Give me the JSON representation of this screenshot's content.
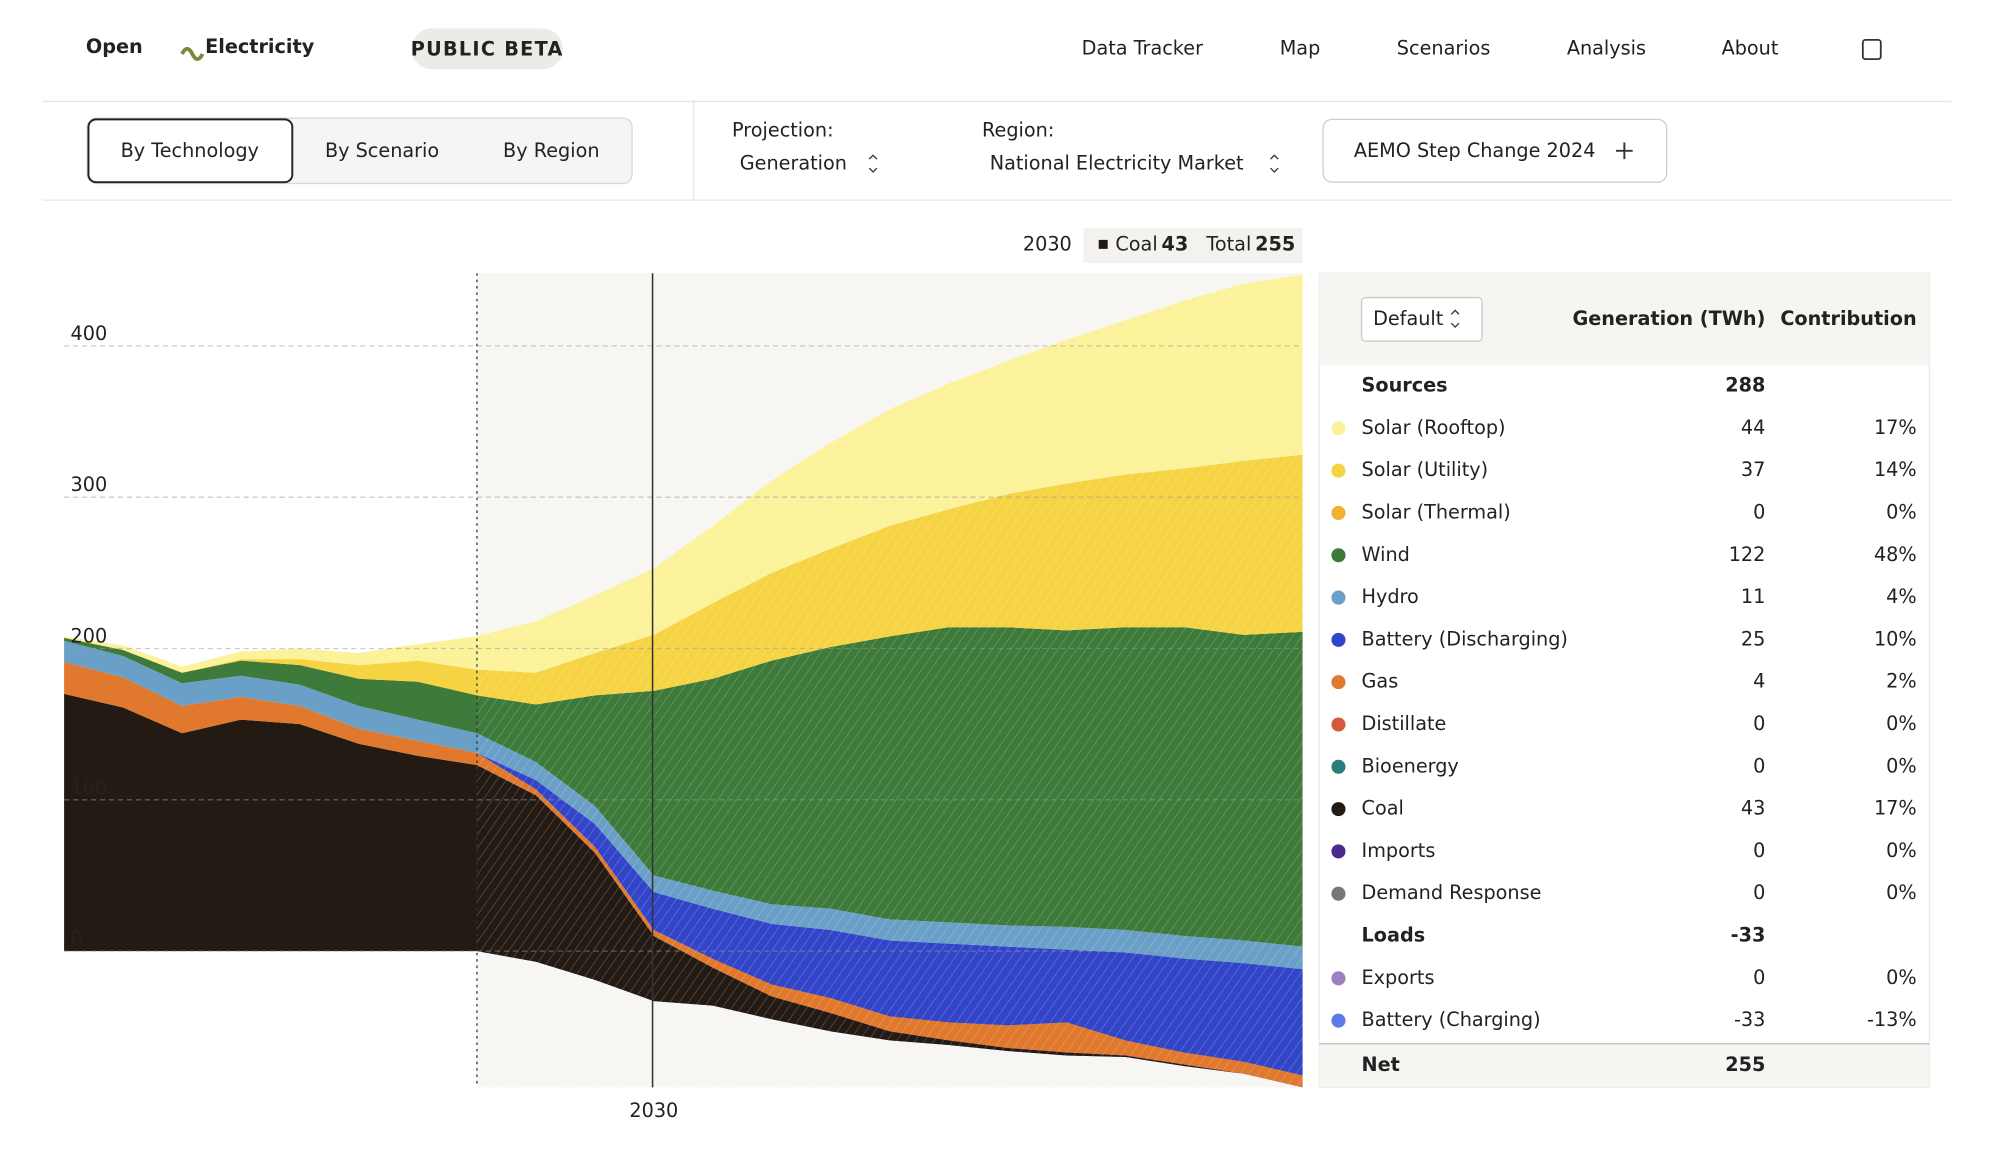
{
  "header": {
    "logo_left": "Open",
    "logo_right": "Electricity",
    "badge": "PUBLIC BETA",
    "nav": [
      "Data Tracker",
      "Map",
      "Scenarios",
      "Analysis",
      "About"
    ]
  },
  "toolbar": {
    "tabs": [
      "By Technology",
      "By Scenario",
      "By Region"
    ],
    "projection_label": "Projection:",
    "projection_value": "Generation",
    "region_label": "Region:",
    "region_value": "National Electricity Market",
    "scenario_button": "AEMO Step Change 2024"
  },
  "tooltip": {
    "period": "2030",
    "series": "Coal",
    "series_value": "43",
    "total_label": "Total",
    "total_value": "255"
  },
  "chart_data": {
    "type": "area",
    "categories": [
      null,
      null,
      null,
      null,
      null,
      null,
      null,
      null,
      null,
      null,
      "2030",
      null,
      null,
      null,
      null,
      null,
      null,
      null,
      null,
      null,
      null,
      null
    ],
    "ylim": [
      -90,
      448
    ],
    "yticks": [
      0,
      100,
      200,
      300,
      400
    ],
    "grid": true,
    "series": [
      {
        "name": "Battery (Charging)",
        "color": "#5b7be6",
        "values": [
          0,
          0,
          0,
          0,
          0,
          0,
          0,
          0,
          -7,
          -19,
          -33,
          -36,
          -45,
          -53,
          -59,
          -62,
          -66,
          -69,
          -70,
          -76,
          -81,
          -90
        ]
      },
      {
        "name": "Coal",
        "color": "#231a13",
        "values": [
          170,
          161,
          144,
          153,
          150,
          137,
          129,
          123,
          110,
          84,
          43,
          25,
          15,
          12,
          6,
          3,
          2,
          2,
          1,
          1,
          0,
          0
        ]
      },
      {
        "name": "Gas",
        "color": "#e0782d",
        "values": [
          21,
          20,
          18,
          15,
          12,
          10,
          10,
          8,
          4,
          4,
          4,
          6,
          8,
          10,
          10,
          12,
          15,
          20,
          10,
          8,
          8,
          8
        ]
      },
      {
        "name": "Battery (Discharging)",
        "color": "#3245c8",
        "values": [
          0,
          0,
          0,
          0,
          0,
          0,
          0,
          0,
          6,
          15,
          25,
          33,
          40,
          45,
          50,
          52,
          52,
          48,
          58,
          62,
          65,
          70
        ]
      },
      {
        "name": "Hydro",
        "color": "#6aa0c8",
        "values": [
          14,
          14,
          15,
          14,
          14,
          15,
          14,
          13,
          12,
          12,
          11,
          12,
          13,
          14,
          14,
          14,
          14,
          15,
          15,
          15,
          15,
          15
        ]
      },
      {
        "name": "Wind",
        "color": "#3e7a39",
        "values": [
          2,
          4,
          7,
          10,
          13,
          18,
          25,
          25,
          38,
          73,
          122,
          140,
          161,
          173,
          187,
          195,
          197,
          196,
          200,
          204,
          202,
          208
        ]
      },
      {
        "name": "Solar (Utility)",
        "color": "#f5d342",
        "values": [
          0,
          0,
          0,
          1,
          4,
          9,
          14,
          17,
          21,
          28,
          37,
          50,
          58,
          65,
          73,
          78,
          88,
          97,
          101,
          105,
          115,
          117
        ]
      },
      {
        "name": "Solar (Rooftop)",
        "color": "#fbf29a",
        "values": [
          1,
          3,
          4,
          5,
          7,
          8,
          11,
          22,
          34,
          38,
          44,
          51,
          61,
          70,
          77,
          83,
          88,
          95,
          102,
          111,
          117,
          119
        ]
      }
    ]
  },
  "table": {
    "sort": "Default",
    "columns": [
      "Generation (TWh)",
      "Contribution"
    ],
    "sources": {
      "label": "Sources",
      "total": "288",
      "items": [
        {
          "name": "Solar (Rooftop)",
          "value": "44",
          "contribution": "17%",
          "color": "#fbf29a"
        },
        {
          "name": "Solar (Utility)",
          "value": "37",
          "contribution": "14%",
          "color": "#f5d342"
        },
        {
          "name": "Solar (Thermal)",
          "value": "0",
          "contribution": "0%",
          "color": "#f0b030"
        },
        {
          "name": "Wind",
          "value": "122",
          "contribution": "48%",
          "color": "#3e7a39"
        },
        {
          "name": "Hydro",
          "value": "11",
          "contribution": "4%",
          "color": "#6aa0c8"
        },
        {
          "name": "Battery (Discharging)",
          "value": "25",
          "contribution": "10%",
          "color": "#3245c8"
        },
        {
          "name": "Gas",
          "value": "4",
          "contribution": "2%",
          "color": "#e0782d"
        },
        {
          "name": "Distillate",
          "value": "0",
          "contribution": "0%",
          "color": "#d6593b"
        },
        {
          "name": "Bioenergy",
          "value": "0",
          "contribution": "0%",
          "color": "#2c7c7c"
        },
        {
          "name": "Coal",
          "value": "43",
          "contribution": "17%",
          "color": "#231a13"
        },
        {
          "name": "Imports",
          "value": "0",
          "contribution": "0%",
          "color": "#4a2a8a"
        },
        {
          "name": "Demand Response",
          "value": "0",
          "contribution": "0%",
          "color": "#777777"
        }
      ]
    },
    "loads": {
      "label": "Loads",
      "total": "-33",
      "items": [
        {
          "name": "Exports",
          "value": "0",
          "contribution": "0%",
          "color": "#9d7fbf"
        },
        {
          "name": "Battery (Charging)",
          "value": "-33",
          "contribution": "-13%",
          "color": "#5b7be6"
        }
      ]
    },
    "net": {
      "label": "Net",
      "value": "255"
    }
  }
}
